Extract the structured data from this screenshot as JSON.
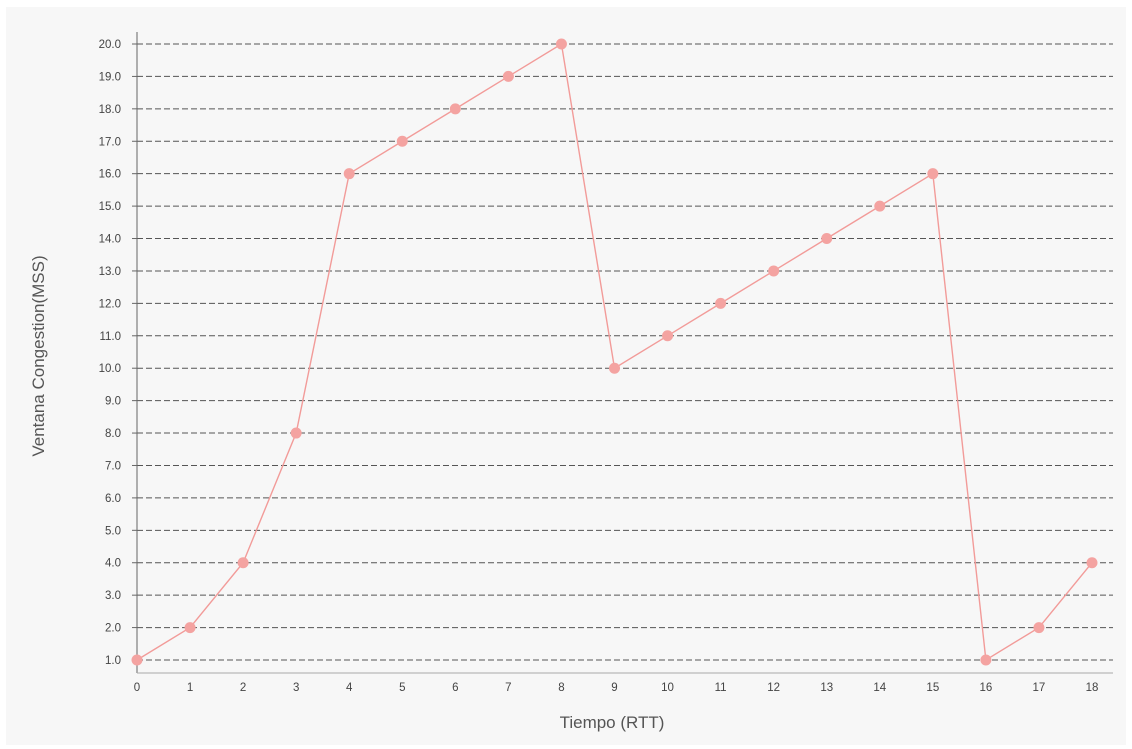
{
  "chart_data": {
    "type": "line",
    "xlabel": "Tiempo (RTT)",
    "ylabel": "Ventana Congestion(MSS)",
    "x": [
      0,
      1,
      2,
      3,
      4,
      5,
      6,
      7,
      8,
      9,
      10,
      11,
      12,
      13,
      14,
      15,
      16,
      17,
      18
    ],
    "series": [
      {
        "values": [
          1,
          2,
          4,
          8,
          16,
          17,
          18,
          19,
          20,
          10,
          11,
          12,
          13,
          14,
          15,
          16,
          1,
          2,
          4
        ]
      }
    ],
    "xlim": [
      0,
      18
    ],
    "ylim": [
      1,
      20
    ],
    "y_ticks": [
      1,
      2,
      3,
      4,
      5,
      6,
      7,
      8,
      9,
      10,
      11,
      12,
      13,
      14,
      15,
      16,
      17,
      18,
      19,
      20
    ],
    "grid": true,
    "color": "#f29b99",
    "marker_color": "#f4a3a1"
  }
}
